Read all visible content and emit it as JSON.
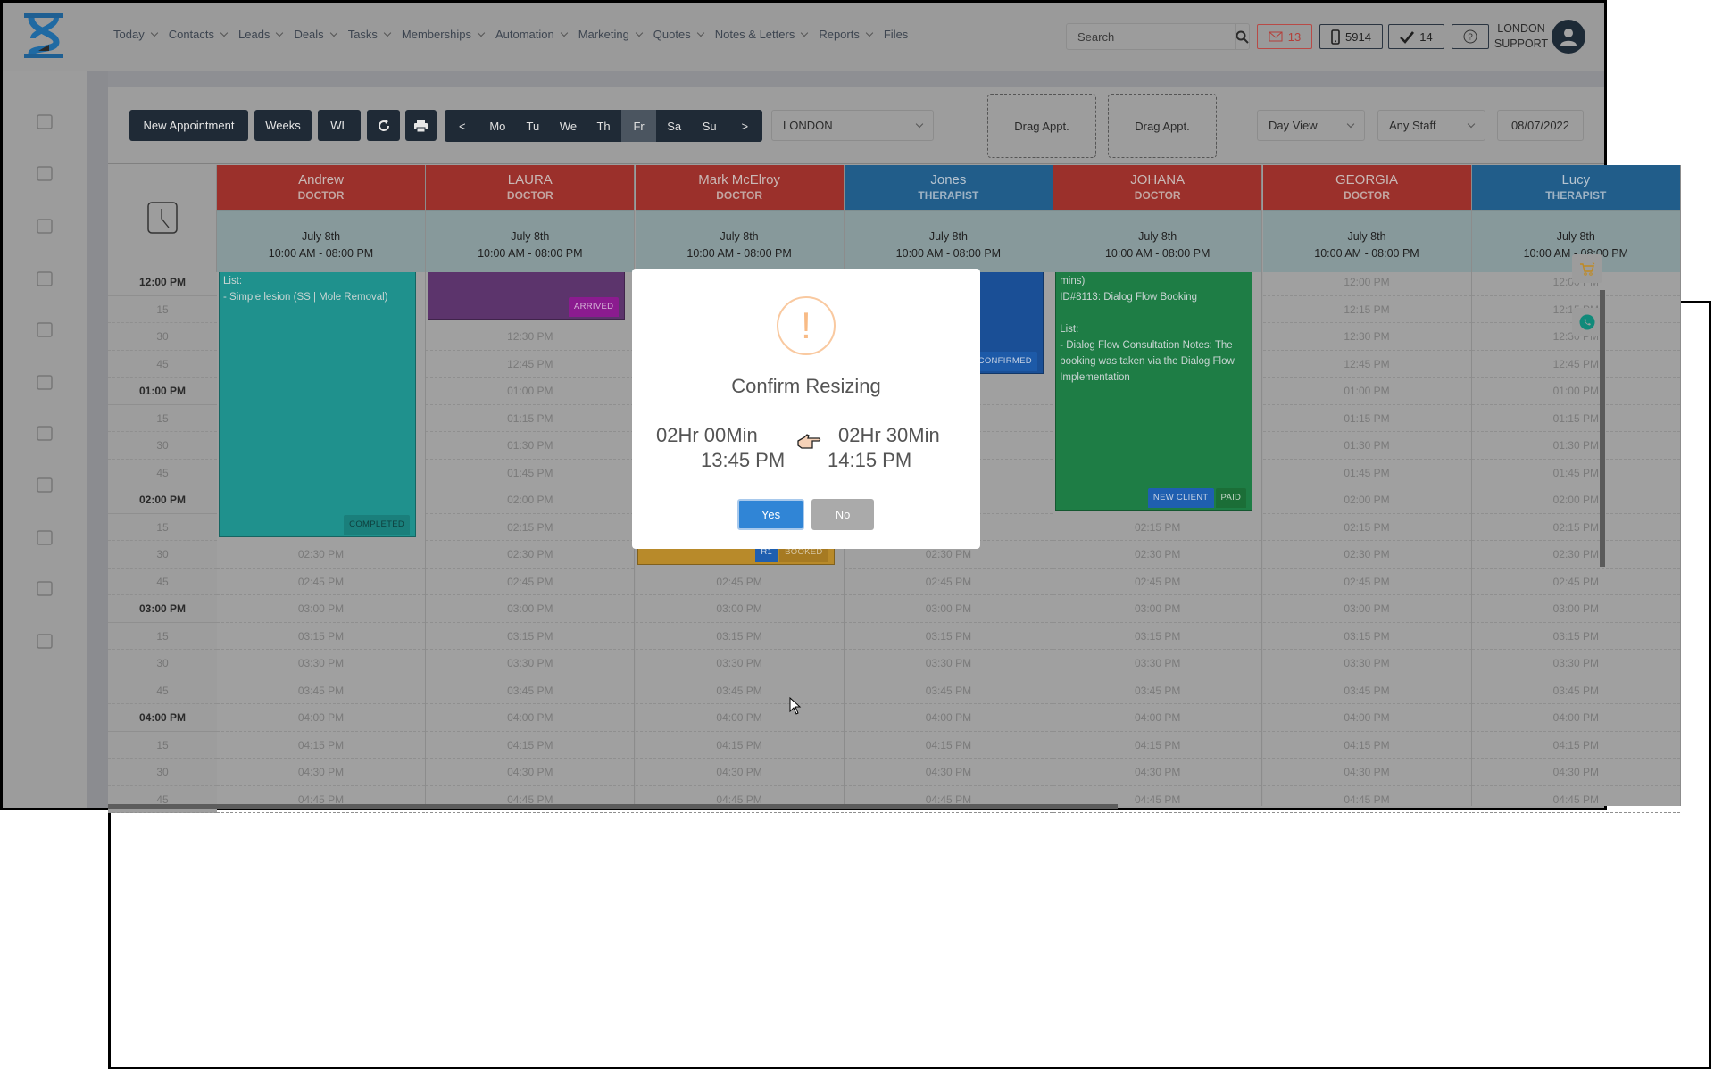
{
  "nav": {
    "menu": [
      {
        "label": "Today",
        "dropdown": true
      },
      {
        "label": "Contacts",
        "dropdown": true
      },
      {
        "label": "Leads",
        "dropdown": true
      },
      {
        "label": "Deals",
        "dropdown": true
      },
      {
        "label": "Tasks",
        "dropdown": true
      },
      {
        "label": "Memberships",
        "dropdown": true
      },
      {
        "label": "Automation",
        "dropdown": true
      },
      {
        "label": "Marketing",
        "dropdown": true
      },
      {
        "label": "Quotes",
        "dropdown": true
      },
      {
        "label": "Notes & Letters",
        "dropdown": true
      },
      {
        "label": "Reports",
        "dropdown": true
      },
      {
        "label": "Files",
        "dropdown": false
      }
    ],
    "search_placeholder": "Search",
    "mail_count": "13",
    "phone_count": "5914",
    "tasks_count": "14",
    "user_line1": "LONDON",
    "user_line2": "SUPPORT"
  },
  "sidebar_icons": [
    "calendar-icon",
    "box-icon",
    "copy-icon",
    "shopping-bag-icon",
    "history-icon",
    "gift-icon",
    "cart-icon",
    "tag-icon",
    "report-icon",
    "user-circle-icon",
    "lock-icon"
  ],
  "toolbar": {
    "new_appointment": "New Appointment",
    "weeks": "Weeks",
    "wl": "WL",
    "days": [
      "<",
      "Mo",
      "Tu",
      "We",
      "Th",
      "Fr",
      "Sa",
      "Su",
      ">"
    ],
    "active_day": "Fr",
    "location": "LONDON",
    "drag_slots": [
      "Drag Appt.",
      "Drag Appt."
    ],
    "view": "Day View",
    "staff": "Any Staff",
    "date": "08/07/2022"
  },
  "gutter_labels": [
    "12:00 PM",
    "15",
    "30",
    "45",
    "01:00 PM",
    "15",
    "30",
    "45",
    "02:00 PM",
    "15",
    "30",
    "45",
    "03:00 PM",
    "15",
    "30",
    "45",
    "04:00 PM",
    "15",
    "30",
    "45"
  ],
  "time_slots": [
    "12:00 PM",
    "12:15 PM",
    "12:30 PM",
    "12:45 PM",
    "01:00 PM",
    "01:15 PM",
    "01:30 PM",
    "01:45 PM",
    "02:00 PM",
    "02:15 PM",
    "02:30 PM",
    "02:45 PM",
    "03:00 PM",
    "03:15 PM",
    "03:30 PM",
    "03:45 PM",
    "04:00 PM",
    "04:15 PM",
    "04:30 PM",
    "04:45 PM"
  ],
  "columns": [
    {
      "name": "Andrew",
      "role": "DOCTOR",
      "header_color": "#9b302b",
      "date": "July 8th",
      "hours": "10:00 AM - 08:00 PM",
      "appointment": {
        "ends": "02:30 PM",
        "color": "#1f918d",
        "lines": [
          "List:",
          "- Simple lesion (SS | Mole Removal)"
        ],
        "tags": [
          {
            "label": "COMPLETED",
            "color": "#1a7f7b",
            "text": "#0e3f3d"
          }
        ]
      }
    },
    {
      "name": "LAURA",
      "role": "DOCTOR",
      "header_color": "#9b302b",
      "date": "July 8th",
      "hours": "10:00 AM - 08:00 PM",
      "appointment": {
        "ends": "12:30 PM",
        "color": "#5c346c",
        "lines": [],
        "tags": [
          {
            "label": "ARRIVED",
            "color": "#8b1b8f",
            "text": "#d8b8da"
          }
        ]
      }
    },
    {
      "name": "Mark McElroy",
      "role": "DOCTOR",
      "header_color": "#9b302b",
      "date": "July 8th",
      "hours": "10:00 AM - 08:00 PM",
      "appointment": {
        "ends": "02:45 PM",
        "color": "#b88a2a",
        "lines": [],
        "tags": [
          {
            "label": "R1",
            "color": "#1f5fb0",
            "text": "#cfd8e6"
          },
          {
            "label": "BOOKED",
            "color": "#a67a22",
            "text": "#d8c8a6"
          }
        ]
      }
    },
    {
      "name": "Jones",
      "role": "THERAPIST",
      "header_color": "#215d8a",
      "date": "July 8th",
      "hours": "10:00 AM - 08:00 PM",
      "appointment": {
        "ends": "01:00 PM",
        "color": "#1a4f96",
        "lines": [],
        "tags": [
          {
            "label": "CONFIRMED",
            "color": "#1d5aa8",
            "text": "#c8d3e4"
          }
        ]
      }
    },
    {
      "name": "JOHANA",
      "role": "DOCTOR",
      "header_color": "#9b302b",
      "date": "July 8th",
      "hours": "10:00 AM - 08:00 PM",
      "appointment": {
        "ends": "02:15 PM",
        "color": "#1e7d45",
        "lines": [
          "mins)",
          "ID#8113: Dialog Flow Booking",
          "",
          "List:",
          "- Dialog Flow Consultation Notes: The booking was taken via the Dialog Flow Implementation"
        ],
        "tags": [
          {
            "label": "NEW CLIENT",
            "color": "#1f5fb0",
            "text": "#c8d3e4"
          },
          {
            "label": "PAID",
            "color": "#1b6e37",
            "text": "#c4d7c8"
          }
        ]
      }
    },
    {
      "name": "GEORGIA",
      "role": "DOCTOR",
      "header_color": "#9b302b",
      "date": "July 8th",
      "hours": "10:00 AM - 08:00 PM",
      "appointment": null
    },
    {
      "name": "Lucy",
      "role": "THERAPIST",
      "header_color": "#215d8a",
      "date": "July 8th",
      "hours": "10:00 AM - 08:00 PM",
      "appointment": null
    }
  ],
  "modal": {
    "title": "Confirm Resizing",
    "old_duration": "02Hr 00Min",
    "new_duration": "02Hr 30Min",
    "old_time": "13:45 PM",
    "new_time": "14:15 PM",
    "yes": "Yes",
    "no": "No",
    "accent": "#3085d6"
  }
}
